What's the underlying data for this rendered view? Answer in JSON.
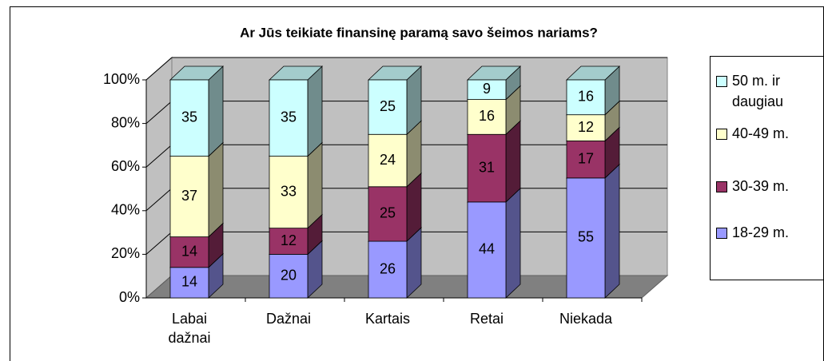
{
  "chart_data": {
    "type": "bar",
    "stacked": true,
    "title": "Ar Jūs teikiate finansinę paramą savo šeimos nariams?",
    "categories": [
      "Labai dažnai",
      "Dažnai",
      "Kartais",
      "Retai",
      "Niekada"
    ],
    "series": [
      {
        "name": "18-29 m.",
        "color": "#9999ff",
        "values": [
          14,
          20,
          26,
          44,
          55
        ]
      },
      {
        "name": "30-39 m.",
        "color": "#993366",
        "values": [
          14,
          12,
          25,
          31,
          17
        ]
      },
      {
        "name": "40-49 m.",
        "color": "#ffffcc",
        "values": [
          37,
          33,
          24,
          16,
          12
        ]
      },
      {
        "name": "50 m. ir daugiau",
        "color": "#ccffff",
        "values": [
          35,
          35,
          25,
          9,
          16
        ]
      }
    ],
    "ylim": [
      0,
      100
    ],
    "yticks": [
      {
        "value": 0,
        "label": "0%"
      },
      {
        "value": 20,
        "label": "20%"
      },
      {
        "value": 40,
        "label": "40%"
      },
      {
        "value": 60,
        "label": "60%"
      },
      {
        "value": 80,
        "label": "80%"
      },
      {
        "value": 100,
        "label": "100%"
      }
    ],
    "grid": true,
    "legend": "right"
  }
}
